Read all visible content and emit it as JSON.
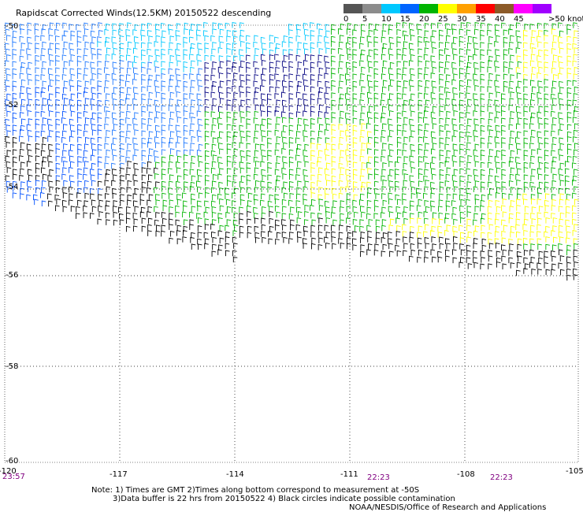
{
  "title": "Rapidscat Corrected Winds(12.5KM) 20150522 descending",
  "legend": {
    "labels": [
      "0",
      "5",
      "10",
      "15",
      "20",
      "25",
      "30",
      "35",
      "40",
      "45",
      ">50 knots"
    ],
    "colors": [
      "#555555",
      "#8c8c8c",
      "#00c8ff",
      "#0064ff",
      "#00b400",
      "#ffff00",
      "#ffa000",
      "#ff0000",
      "#8c5a28",
      "#ff00ff",
      "#a000ff"
    ]
  },
  "lat_labels": [
    "-50",
    "-52",
    "-54",
    "-56",
    "-58",
    "-60"
  ],
  "lon_labels": [
    "-120",
    "-117",
    "-114",
    "-111",
    "-108",
    "-105"
  ],
  "lat_label_display": [
    "-50",
    "-52",
    "-54",
    "-56",
    "-58",
    "-60"
  ],
  "time_labels": [
    "23:57",
    "22:23",
    "22:23"
  ],
  "notes": {
    "line1": "Note: 1) Times are GMT 2)Times along bottom correspond to measurement at -50S",
    "line2": "3)Data buffer is 22 hrs from 20150522 4) Black circles indicate possible contamination",
    "credit": "NOAA/NESDIS/Office of Research and Applications"
  },
  "map_data": {
    "lon_range": [
      -120,
      -105
    ],
    "lat_range": [
      -60,
      -50
    ],
    "grid": "dotted",
    "wind_speed_colors_knots": [
      0,
      5,
      10,
      15,
      20,
      25,
      30,
      35,
      40,
      45,
      50
    ]
  }
}
